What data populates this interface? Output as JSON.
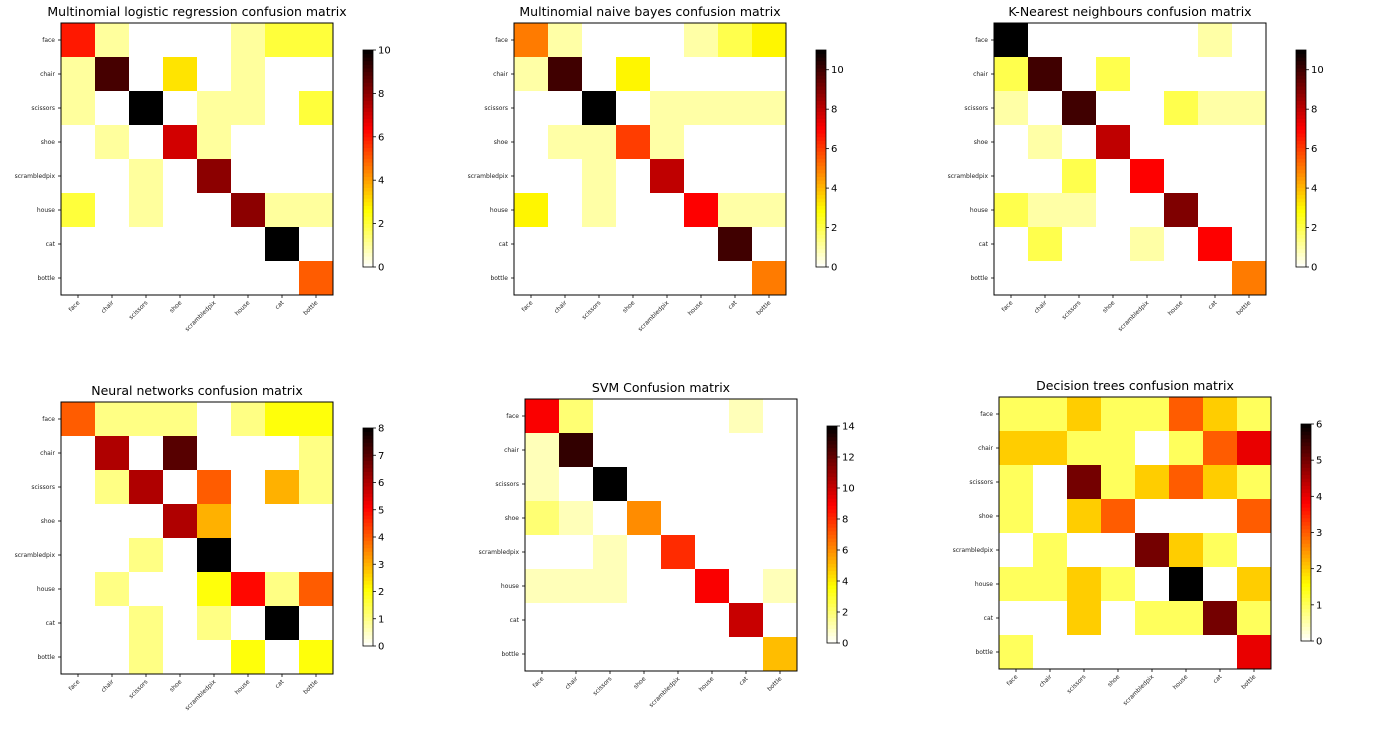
{
  "chart_data": [
    {
      "type": "heatmap",
      "title": "Multinomial logistic regression confusion matrix",
      "x_categories": [
        "face",
        "chair",
        "scissors",
        "shoe",
        "scrambledpix",
        "house",
        "cat",
        "bottle"
      ],
      "y_categories": [
        "face",
        "chair",
        "scissors",
        "shoe",
        "scrambledpix",
        "house",
        "cat",
        "bottle"
      ],
      "colormap": "hot_r",
      "colorbar": {
        "range": [
          0,
          10
        ],
        "ticks": [
          0,
          2,
          4,
          6,
          8,
          10
        ]
      },
      "values": [
        [
          6,
          1,
          0,
          0,
          0,
          1,
          2,
          2
        ],
        [
          1,
          9,
          0,
          3,
          0,
          1,
          0,
          0
        ],
        [
          1,
          0,
          10,
          0,
          1,
          1,
          0,
          2
        ],
        [
          0,
          1,
          0,
          7,
          1,
          0,
          0,
          0
        ],
        [
          0,
          0,
          1,
          0,
          8,
          0,
          0,
          0
        ],
        [
          2,
          0,
          1,
          0,
          0,
          8,
          1,
          1
        ],
        [
          0,
          0,
          0,
          0,
          0,
          0,
          10,
          0
        ],
        [
          0,
          0,
          0,
          0,
          0,
          0,
          0,
          5
        ]
      ]
    },
    {
      "type": "heatmap",
      "title": "Multinomial naive bayes confusion matrix",
      "x_categories": [
        "face",
        "chair",
        "scissors",
        "shoe",
        "scrambledpix",
        "house",
        "cat",
        "bottle"
      ],
      "y_categories": [
        "face",
        "chair",
        "scissors",
        "shoe",
        "scrambledpix",
        "house",
        "cat",
        "bottle"
      ],
      "colormap": "hot_r",
      "colorbar": {
        "range": [
          0,
          11
        ],
        "ticks": [
          0,
          2,
          4,
          6,
          8,
          10
        ]
      },
      "values": [
        [
          5,
          1,
          0,
          0,
          0,
          1,
          2,
          3
        ],
        [
          1,
          10,
          0,
          3,
          0,
          0,
          0,
          0
        ],
        [
          0,
          0,
          11,
          0,
          1,
          1,
          1,
          1
        ],
        [
          0,
          1,
          1,
          6,
          1,
          0,
          0,
          0
        ],
        [
          0,
          0,
          1,
          0,
          8,
          0,
          0,
          0
        ],
        [
          3,
          0,
          1,
          0,
          0,
          7,
          1,
          1
        ],
        [
          0,
          0,
          0,
          0,
          0,
          0,
          10,
          0
        ],
        [
          0,
          0,
          0,
          0,
          0,
          0,
          0,
          5
        ]
      ]
    },
    {
      "type": "heatmap",
      "title": "K-Nearest neighbours confusion matrix",
      "x_categories": [
        "face",
        "chair",
        "scissors",
        "shoe",
        "scrambledpix",
        "house",
        "cat",
        "bottle"
      ],
      "y_categories": [
        "face",
        "chair",
        "scissors",
        "shoe",
        "scrambledpix",
        "house",
        "cat",
        "bottle"
      ],
      "colormap": "hot_r",
      "colorbar": {
        "range": [
          0,
          11
        ],
        "ticks": [
          0,
          2,
          4,
          6,
          8,
          10
        ]
      },
      "values": [
        [
          11,
          0,
          0,
          0,
          0,
          0,
          1,
          0
        ],
        [
          2,
          10,
          0,
          2,
          0,
          0,
          0,
          0
        ],
        [
          1,
          0,
          10,
          0,
          0,
          2,
          1,
          1
        ],
        [
          0,
          1,
          0,
          8,
          0,
          0,
          0,
          0
        ],
        [
          0,
          0,
          2,
          0,
          7,
          0,
          0,
          0
        ],
        [
          2,
          1,
          1,
          0,
          0,
          9,
          0,
          0
        ],
        [
          0,
          2,
          0,
          0,
          1,
          0,
          7,
          0
        ],
        [
          0,
          0,
          0,
          0,
          0,
          0,
          0,
          5
        ]
      ]
    },
    {
      "type": "heatmap",
      "title": "Neural networks confusion matrix",
      "x_categories": [
        "face",
        "chair",
        "scissors",
        "shoe",
        "scrambledpix",
        "house",
        "cat",
        "bottle"
      ],
      "y_categories": [
        "face",
        "chair",
        "scissors",
        "shoe",
        "scrambledpix",
        "house",
        "cat",
        "bottle"
      ],
      "colormap": "hot_r",
      "colorbar": {
        "range": [
          0,
          8
        ],
        "ticks": [
          0,
          1,
          2,
          3,
          4,
          5,
          6,
          7,
          8
        ]
      },
      "values": [
        [
          4,
          1,
          1,
          1,
          0,
          1,
          2,
          2
        ],
        [
          0,
          6,
          0,
          7,
          0,
          0,
          0,
          1
        ],
        [
          0,
          1,
          6,
          0,
          4,
          0,
          3,
          1
        ],
        [
          0,
          0,
          0,
          6,
          3,
          0,
          0,
          0
        ],
        [
          0,
          0,
          1,
          0,
          8,
          0,
          0,
          0
        ],
        [
          0,
          1,
          0,
          0,
          2,
          5,
          1,
          4
        ],
        [
          0,
          0,
          1,
          0,
          1,
          0,
          8,
          0
        ],
        [
          0,
          0,
          1,
          0,
          0,
          2,
          0,
          2
        ]
      ]
    },
    {
      "type": "heatmap",
      "title": "SVM Confusion matrix",
      "x_categories": [
        "face",
        "chair",
        "scissors",
        "shoe",
        "scrambledpix",
        "house",
        "cat",
        "bottle"
      ],
      "y_categories": [
        "face",
        "chair",
        "scissors",
        "shoe",
        "scrambledpix",
        "house",
        "cat",
        "bottle"
      ],
      "colormap": "hot_r",
      "colorbar": {
        "range": [
          0,
          14
        ],
        "ticks": [
          0,
          2,
          4,
          6,
          8,
          10,
          12,
          14
        ]
      },
      "values": [
        [
          9,
          2,
          0,
          0,
          0,
          0,
          1,
          0
        ],
        [
          1,
          13,
          0,
          0,
          0,
          0,
          0,
          0
        ],
        [
          1,
          0,
          14,
          0,
          0,
          0,
          0,
          0
        ],
        [
          2,
          1,
          0,
          6,
          0,
          0,
          0,
          0
        ],
        [
          0,
          0,
          1,
          0,
          8,
          0,
          0,
          0
        ],
        [
          1,
          1,
          1,
          0,
          0,
          9,
          0,
          1
        ],
        [
          0,
          0,
          0,
          0,
          0,
          0,
          10,
          0
        ],
        [
          0,
          0,
          0,
          0,
          0,
          0,
          0,
          5
        ]
      ]
    },
    {
      "type": "heatmap",
      "title": "Decision trees confusion matrix",
      "x_categories": [
        "face",
        "chair",
        "scissors",
        "shoe",
        "scrambledpix",
        "house",
        "cat",
        "bottle"
      ],
      "y_categories": [
        "face",
        "chair",
        "scissors",
        "shoe",
        "scrambledpix",
        "house",
        "cat",
        "bottle"
      ],
      "colormap": "hot_r",
      "colorbar": {
        "range": [
          0,
          6
        ],
        "ticks": [
          0,
          1,
          2,
          3,
          4,
          5,
          6
        ]
      },
      "values": [
        [
          1,
          1,
          2,
          1,
          1,
          3,
          2,
          1
        ],
        [
          2,
          2,
          1,
          1,
          0,
          1,
          3,
          4
        ],
        [
          1,
          0,
          5,
          1,
          2,
          3,
          2,
          1
        ],
        [
          1,
          0,
          2,
          3,
          0,
          0,
          0,
          3
        ],
        [
          0,
          1,
          0,
          0,
          5,
          2,
          1,
          0
        ],
        [
          1,
          1,
          2,
          1,
          0,
          6,
          0,
          2
        ],
        [
          0,
          0,
          2,
          0,
          1,
          1,
          5,
          1
        ],
        [
          1,
          0,
          0,
          0,
          0,
          0,
          0,
          4
        ]
      ]
    }
  ]
}
